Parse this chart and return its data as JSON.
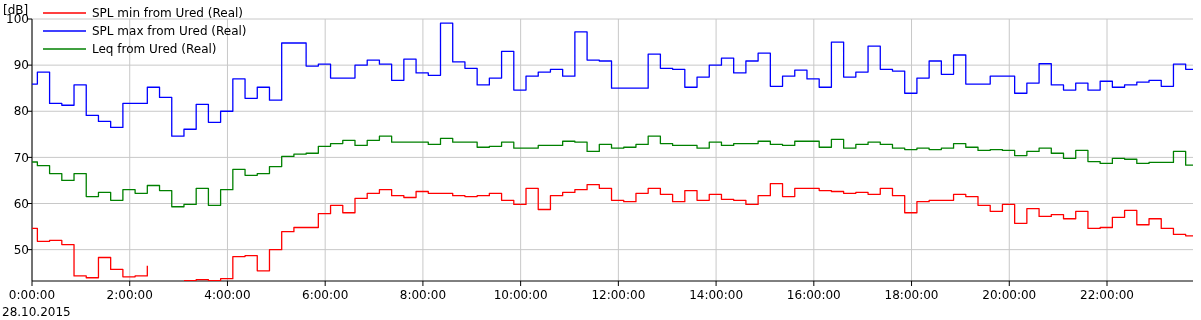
{
  "chart_data": {
    "type": "step",
    "ylabel": "[dB]",
    "annotations": [
      "28.10.2015"
    ],
    "x": [
      0,
      0.11,
      0.36,
      0.61,
      0.86,
      1.11,
      1.36,
      1.61,
      1.86,
      2.11,
      2.36,
      2.61,
      2.86,
      3.11,
      3.36,
      3.61,
      3.86,
      4.11,
      4.36,
      4.61,
      4.86,
      5.11,
      5.36,
      5.61,
      5.86,
      6.11,
      6.36,
      6.61,
      6.86,
      7.11,
      7.36,
      7.61,
      7.86,
      8.11,
      8.36,
      8.61,
      8.86,
      9.11,
      9.36,
      9.61,
      9.86,
      10.11,
      10.36,
      10.61,
      10.86,
      11.11,
      11.36,
      11.61,
      11.86,
      12.11,
      12.36,
      12.61,
      12.86,
      13.11,
      13.36,
      13.61,
      13.86,
      14.11,
      14.36,
      14.61,
      14.86,
      15.11,
      15.36,
      15.61,
      15.86,
      16.11,
      16.36,
      16.61,
      16.86,
      17.11,
      17.36,
      17.61,
      17.86,
      18.11,
      18.36,
      18.61,
      18.86,
      19.11,
      19.36,
      19.61,
      19.86,
      20.11,
      20.36,
      20.61,
      20.86,
      21.11,
      21.36,
      21.61,
      21.86,
      22.11,
      22.36,
      22.61,
      22.86,
      23.11,
      23.36,
      23.61,
      23.76
    ],
    "series": [
      {
        "name": "SPL min from Ured (Real)",
        "color": "#ff0000",
        "values": [
          54.6,
          51.8,
          52.0,
          51.1,
          44.3,
          43.9,
          48.3,
          45.7,
          44.1,
          44.3,
          46.5,
          null,
          null,
          43.3,
          43.5,
          43.3,
          43.7,
          48.5,
          48.7,
          45.4,
          50.0,
          53.9,
          54.8,
          54.8,
          57.8,
          59.6,
          58.0,
          61.1,
          62.2,
          63.0,
          61.7,
          61.3,
          62.6,
          62.2,
          62.2,
          61.7,
          61.5,
          61.7,
          62.2,
          60.7,
          59.8,
          63.3,
          58.7,
          61.7,
          62.4,
          63.0,
          64.1,
          63.3,
          60.7,
          60.4,
          62.2,
          63.3,
          62.0,
          60.4,
          62.8,
          60.7,
          62.0,
          60.9,
          60.7,
          59.8,
          61.7,
          64.3,
          61.5,
          63.3,
          63.3,
          62.8,
          62.6,
          62.2,
          62.4,
          62.0,
          63.3,
          61.7,
          58.0,
          60.4,
          60.7,
          60.7,
          62.0,
          61.5,
          59.6,
          58.3,
          59.8,
          55.7,
          58.9,
          57.2,
          57.6,
          56.7,
          58.3,
          54.6,
          54.8,
          57.0,
          58.5,
          55.4,
          56.7,
          54.6,
          53.3,
          53.0,
          53.0
        ]
      },
      {
        "name": "SPL max from Ured (Real)",
        "color": "#0000ff",
        "values": [
          85.9,
          88.5,
          81.7,
          81.3,
          85.7,
          79.1,
          77.8,
          76.5,
          81.7,
          81.7,
          85.2,
          83.0,
          74.6,
          76.1,
          81.5,
          77.6,
          80.0,
          87.0,
          82.8,
          85.2,
          82.4,
          94.8,
          94.8,
          89.8,
          90.2,
          87.2,
          87.2,
          90.0,
          91.1,
          90.2,
          86.7,
          91.3,
          88.3,
          87.8,
          99.1,
          90.7,
          89.3,
          85.7,
          87.2,
          93.0,
          84.6,
          87.6,
          88.5,
          89.1,
          87.6,
          97.2,
          91.1,
          90.9,
          85.0,
          85.0,
          85.0,
          92.4,
          89.3,
          89.1,
          85.2,
          87.4,
          90.0,
          91.5,
          88.3,
          90.9,
          92.6,
          85.4,
          87.6,
          88.9,
          87.0,
          85.2,
          95.0,
          87.4,
          88.5,
          94.1,
          89.1,
          88.7,
          83.9,
          87.2,
          90.9,
          88.0,
          92.2,
          85.9,
          85.9,
          87.6,
          87.6,
          83.9,
          86.1,
          90.3,
          85.7,
          84.6,
          86.1,
          84.6,
          86.5,
          85.2,
          85.7,
          86.3,
          86.7,
          85.4,
          90.2,
          89.1,
          89.1
        ]
      },
      {
        "name": "Leq from Ured (Real)",
        "color": "#008000",
        "values": [
          69.0,
          68.2,
          66.5,
          65.0,
          66.5,
          61.5,
          62.4,
          60.7,
          63.0,
          62.2,
          63.9,
          62.8,
          59.3,
          59.8,
          63.3,
          59.6,
          63.0,
          67.4,
          66.1,
          66.5,
          68.0,
          70.2,
          70.7,
          70.9,
          72.4,
          73.0,
          73.7,
          72.6,
          73.7,
          74.6,
          73.3,
          73.3,
          73.3,
          72.8,
          74.1,
          73.3,
          73.3,
          72.2,
          72.4,
          73.3,
          72.0,
          72.0,
          72.6,
          72.6,
          73.5,
          73.3,
          71.3,
          72.8,
          72.0,
          72.2,
          72.8,
          74.6,
          73.0,
          72.6,
          72.6,
          72.0,
          73.3,
          72.6,
          73.0,
          73.0,
          73.5,
          72.8,
          72.6,
          73.5,
          73.5,
          72.2,
          73.9,
          72.0,
          72.8,
          73.3,
          72.8,
          72.0,
          71.7,
          72.0,
          71.7,
          72.0,
          73.0,
          72.2,
          71.5,
          71.7,
          71.5,
          70.4,
          71.3,
          72.0,
          70.9,
          69.8,
          71.5,
          69.1,
          68.7,
          69.8,
          69.6,
          68.7,
          68.9,
          68.9,
          71.3,
          68.3,
          68.3
        ]
      }
    ],
    "xlim": [
      0,
      23.76
    ],
    "xticks": [
      {
        "value": 0,
        "label": "0:00:00"
      },
      {
        "value": 2,
        "label": "2:00:00"
      },
      {
        "value": 4,
        "label": "4:00:00"
      },
      {
        "value": 6,
        "label": "6:00:00"
      },
      {
        "value": 8,
        "label": "8:00:00"
      },
      {
        "value": 10,
        "label": "10:00:00"
      },
      {
        "value": 12,
        "label": "12:00:00"
      },
      {
        "value": 14,
        "label": "14:00:00"
      },
      {
        "value": 16,
        "label": "16:00:00"
      },
      {
        "value": 18,
        "label": "18:00:00"
      },
      {
        "value": 20,
        "label": "20:00:00"
      },
      {
        "value": 22,
        "label": "22:00:00"
      }
    ],
    "ylim": [
      43.2,
      100
    ],
    "yticks": [
      50,
      60,
      70,
      80,
      90,
      100
    ],
    "grid": true,
    "legend": "top left",
    "line_style": "solid"
  }
}
